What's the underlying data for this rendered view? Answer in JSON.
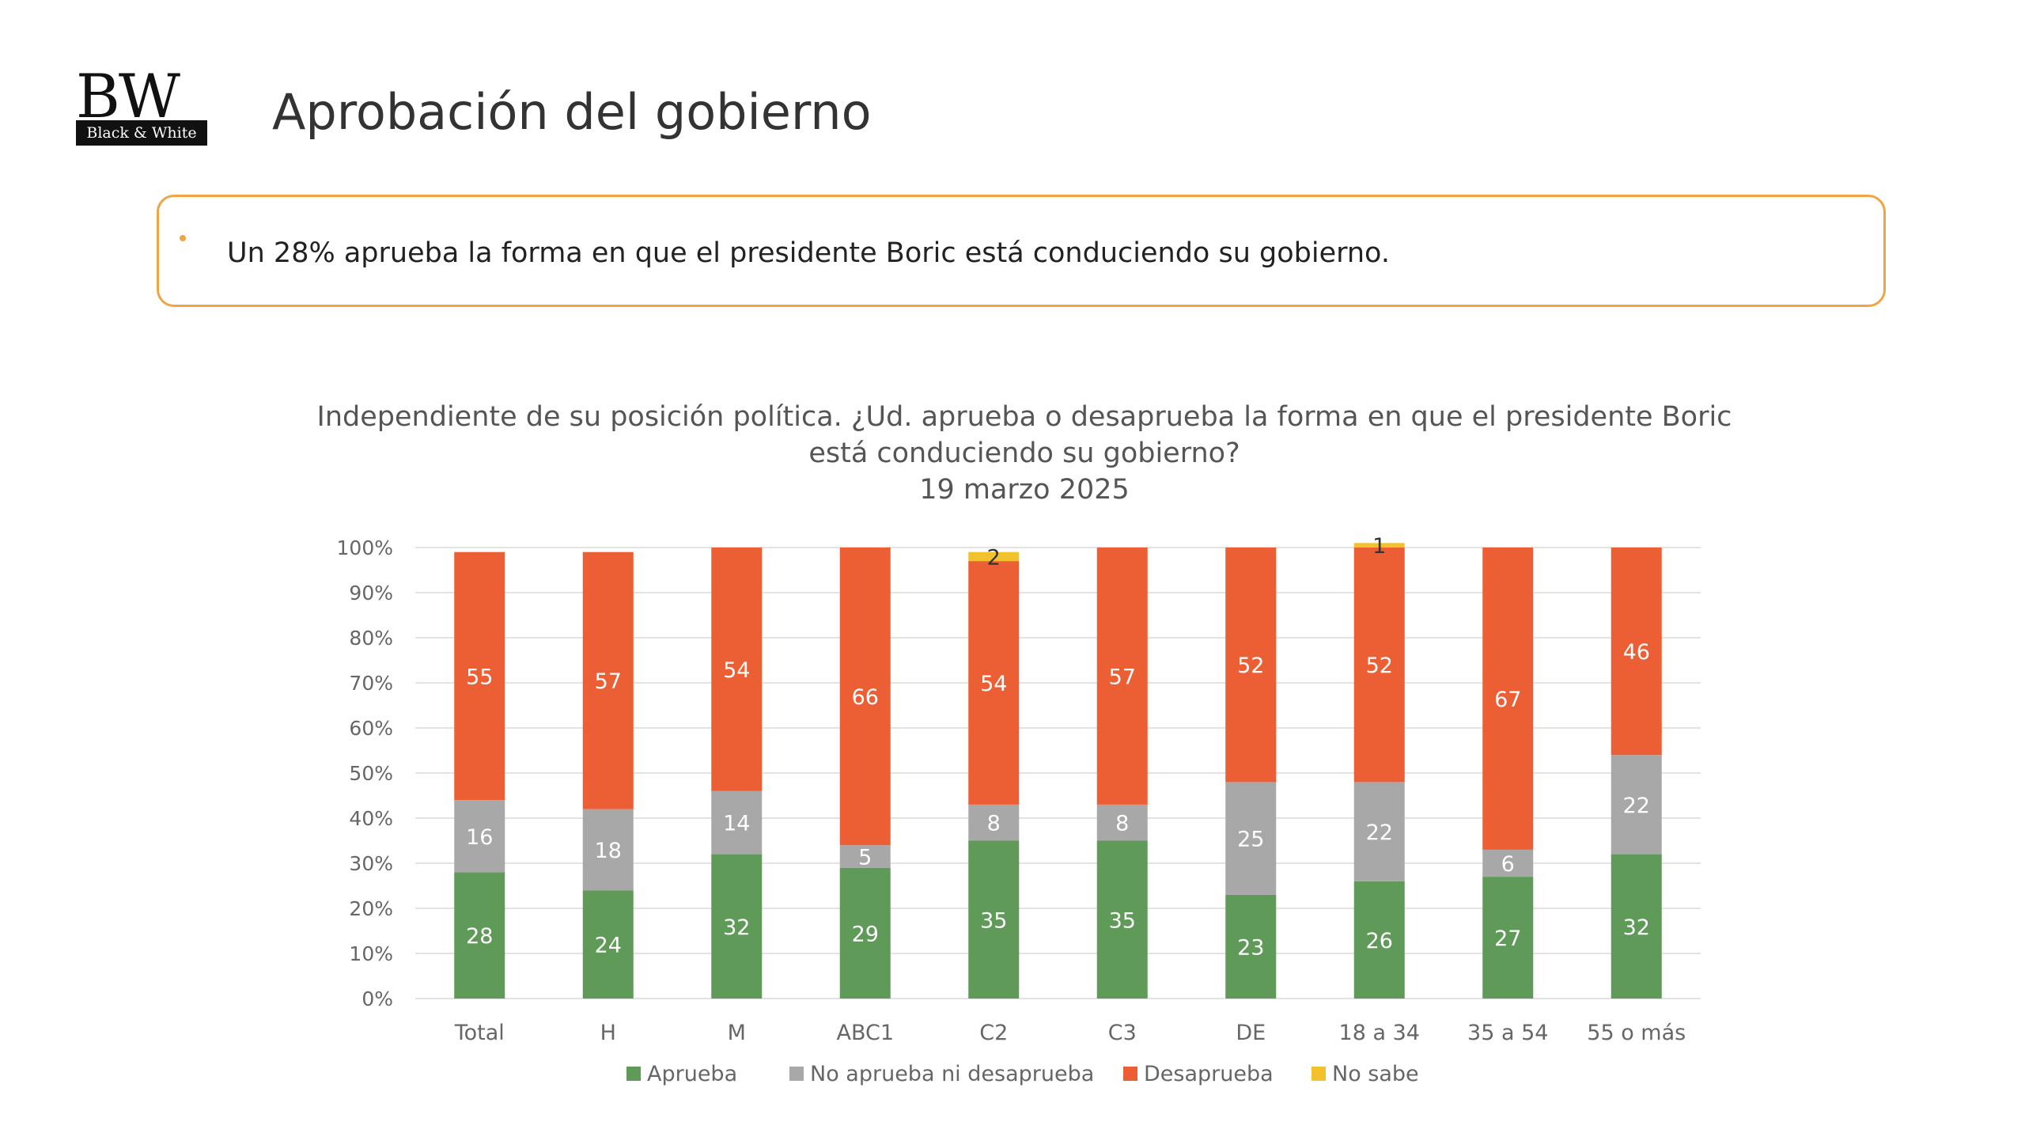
{
  "logo": {
    "mark": "BW",
    "subtitle": "Black & White"
  },
  "header": {
    "title": "Aprobación del gobierno"
  },
  "callout": {
    "text": "Un 28% aprueba la forma en que el presidente Boric está conduciendo su gobierno."
  },
  "chart_title": {
    "line1": "Independiente de su posición política. ¿Ud. aprueba o desaprueba la forma en que el presidente Boric",
    "line2": "está conduciendo su gobierno?",
    "line3": "19 marzo 2025"
  },
  "chart_data": {
    "type": "bar",
    "stacked": true,
    "percent_stacked": true,
    "categories": [
      "Total",
      "H",
      "M",
      "ABC1",
      "C2",
      "C3",
      "DE",
      "18 a 34",
      "35 a 54",
      "55 o más"
    ],
    "y_ticks": [
      "0%",
      "10%",
      "20%",
      "30%",
      "40%",
      "50%",
      "60%",
      "70%",
      "80%",
      "90%",
      "100%"
    ],
    "ylim": [
      0,
      100
    ],
    "grid": true,
    "legend": "bottom",
    "series": [
      {
        "name": "Aprueba",
        "color": "#5f9a58",
        "values": [
          28,
          24,
          32,
          29,
          35,
          35,
          23,
          26,
          27,
          32
        ]
      },
      {
        "name": "No aprueba ni desaprueba",
        "color": "#a8a8a8",
        "values": [
          16,
          18,
          14,
          5,
          8,
          8,
          25,
          22,
          6,
          22
        ]
      },
      {
        "name": "Desaprueba",
        "color": "#ec5f35",
        "values": [
          55,
          57,
          54,
          66,
          54,
          57,
          52,
          52,
          67,
          46
        ]
      },
      {
        "name": "No sabe",
        "color": "#f2c12e",
        "values": [
          null,
          null,
          null,
          null,
          2,
          null,
          null,
          1,
          null,
          null
        ]
      }
    ]
  }
}
